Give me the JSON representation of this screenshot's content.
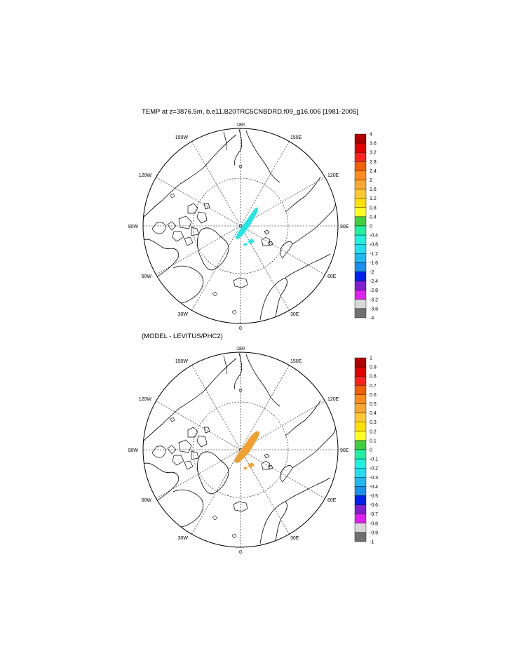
{
  "panels": [
    {
      "title": "TEMP at z=3876.5m, b.e11.B20TRC5CNBDRD.f09_g16.006 [1981-2005]",
      "meridian_labels": {
        "top": "180",
        "bottom": "0",
        "left": "90W",
        "right": "90E",
        "upper_left_1": "150W",
        "upper_left_2": "120W",
        "upper_right_1": "150E",
        "upper_right_2": "120E",
        "lower_left_1": "60W",
        "lower_left_2": "30W",
        "lower_right_1": "60E",
        "lower_right_2": "30E"
      },
      "colorbar_labels": [
        "4",
        "3.6",
        "3.2",
        "2.8",
        "2.4",
        "2",
        "1.6",
        "1.2",
        "0.8",
        "0.4",
        "0",
        "-0.4",
        "-0.8",
        "-1.2",
        "-1.6",
        "-2",
        "-2.4",
        "-2.8",
        "-3.2",
        "-3.6",
        "-4"
      ],
      "shaded_anomaly_color": "#20e6e6"
    },
    {
      "title": "(MODEL - LEVITUS/PHC2)",
      "meridian_labels": {
        "top": "180",
        "bottom": "0",
        "left": "90W",
        "right": "90E",
        "upper_left_1": "150W",
        "upper_left_2": "120W",
        "upper_right_1": "150E",
        "upper_right_2": "120E",
        "lower_left_1": "60W",
        "lower_left_2": "30W",
        "lower_right_1": "60E",
        "lower_right_2": "30E"
      },
      "colorbar_labels": [
        "1",
        "0.9",
        "0.8",
        "0.7",
        "0.6",
        "0.5",
        "0.4",
        "0.3",
        "0.2",
        "0.1",
        "0",
        "-0.1",
        "-0.2",
        "-0.3",
        "-0.4",
        "-0.5",
        "-0.6",
        "-0.7",
        "-0.8",
        "-0.9",
        "-1"
      ],
      "shaded_anomaly_color": "#f0a030"
    }
  ],
  "colorbar_colors": [
    "#b00000",
    "#e00000",
    "#ff2020",
    "#f06000",
    "#ff8c1a",
    "#f8a830",
    "#ffc830",
    "#ffe000",
    "#ffff20",
    "#40d040",
    "#20f0a0",
    "#20f0e0",
    "#20e0f0",
    "#20b8f0",
    "#1890f0",
    "#0020f0",
    "#8020d0",
    "#e020f0",
    "#d8d8d8",
    "#707070"
  ]
}
